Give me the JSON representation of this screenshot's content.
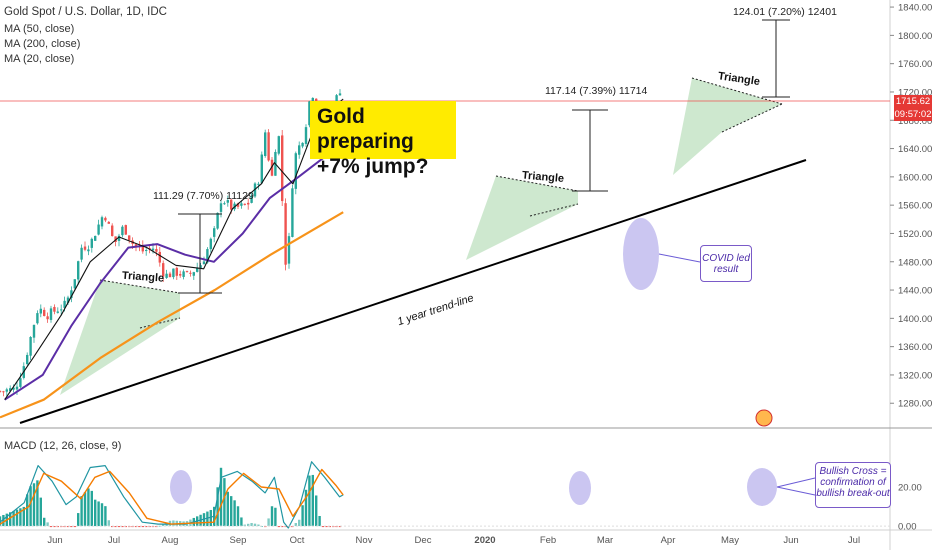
{
  "header": {
    "symbol": "Gold Spot / U.S. Dollar, 1D, IDC",
    "indicators": [
      "MA (50, close)",
      "MA (200, close)",
      "MA (20, close)"
    ],
    "macd_label": "MACD (12, 26, close, 9)"
  },
  "callout": {
    "line1": "Gold preparing",
    "line2": "+7% jump?"
  },
  "price_tags": {
    "last": "1715.62",
    "timer": "09:57:02"
  },
  "annotations": {
    "measure1": "111.29 (7.70%) 11129",
    "measure2": "117.14 (7.39%) 11714",
    "measure3": "124.01 (7.20%) 12401",
    "triangle1": "Triangle",
    "triangle2": "Triangle",
    "triangle3": "Triangle",
    "trendline": "1 year trend-line",
    "covid_note": "COVID led result",
    "bullish_note": "Bullish Cross = confirmation of bullish break-out"
  },
  "colors": {
    "up": "#26a69a",
    "down": "#ef5350",
    "ma20": "#111111",
    "ma50": "#5b2ea6",
    "ma200": "#f7931a",
    "macd": "#2196a3",
    "signal": "#f57c00",
    "highlight": "#6b5cd6"
  },
  "chart_data": {
    "type": "candlestick",
    "title": "Gold Spot / U.S. Dollar, 1D, IDC",
    "x_ticks": [
      "Jun",
      "Jul",
      "Aug",
      "Sep",
      "Oct",
      "Nov",
      "Dec",
      "2020",
      "Feb",
      "Mar",
      "Apr",
      "May",
      "Jun",
      "Jul"
    ],
    "y_ticks": [
      1280,
      1320,
      1360,
      1400,
      1440,
      1480,
      1520,
      1560,
      1600,
      1640,
      1680,
      1720,
      1760,
      1800,
      1840
    ],
    "ylim": [
      1245,
      1850
    ],
    "close_path": [
      [
        "2019-05-15",
        1297
      ],
      [
        "2019-05-31",
        1300
      ],
      [
        "2019-06-10",
        1335
      ],
      [
        "2019-06-20",
        1390
      ],
      [
        "2019-06-25",
        1415
      ],
      [
        "2019-07-05",
        1405
      ],
      [
        "2019-07-15",
        1412
      ],
      [
        "2019-07-25",
        1420
      ],
      [
        "2019-08-05",
        1465
      ],
      [
        "2019-08-10",
        1500
      ],
      [
        "2019-08-20",
        1505
      ],
      [
        "2019-09-04",
        1550
      ],
      [
        "2019-09-15",
        1505
      ],
      [
        "2019-09-25",
        1530
      ],
      [
        "2019-10-05",
        1505
      ],
      [
        "2019-10-15",
        1495
      ],
      [
        "2019-10-28",
        1500
      ],
      [
        "2019-11-08",
        1460
      ],
      [
        "2019-11-20",
        1465
      ],
      [
        "2019-12-03",
        1460
      ],
      [
        "2019-12-18",
        1478
      ],
      [
        "2019-12-31",
        1520
      ],
      [
        "2020-01-08",
        1570
      ],
      [
        "2020-01-20",
        1555
      ],
      [
        "2020-02-05",
        1560
      ],
      [
        "2020-02-18",
        1600
      ],
      [
        "2020-02-24",
        1665
      ],
      [
        "2020-03-02",
        1595
      ],
      [
        "2020-03-09",
        1675
      ],
      [
        "2020-03-17",
        1480
      ],
      [
        "2020-03-20",
        1495
      ],
      [
        "2020-03-26",
        1625
      ],
      [
        "2020-04-06",
        1660
      ],
      [
        "2020-04-14",
        1725
      ],
      [
        "2020-04-21",
        1685
      ],
      [
        "2020-04-30",
        1700
      ],
      [
        "2020-05-06",
        1690
      ],
      [
        "2020-05-14",
        1725
      ],
      [
        "2020-05-18",
        1715
      ]
    ],
    "ma20": [
      [
        "2019-05-20",
        1285
      ],
      [
        "2019-06-20",
        1345
      ],
      [
        "2019-07-20",
        1405
      ],
      [
        "2019-08-20",
        1480
      ],
      [
        "2019-09-20",
        1515
      ],
      [
        "2019-10-20",
        1500
      ],
      [
        "2019-11-20",
        1475
      ],
      [
        "2019-12-20",
        1470
      ],
      [
        "2020-01-20",
        1555
      ],
      [
        "2020-02-20",
        1590
      ],
      [
        "2020-03-05",
        1620
      ],
      [
        "2020-03-25",
        1590
      ],
      [
        "2020-04-20",
        1680
      ],
      [
        "2020-05-18",
        1710
      ]
    ],
    "ma50": [
      [
        "2019-05-20",
        1285
      ],
      [
        "2019-06-30",
        1320
      ],
      [
        "2019-07-31",
        1390
      ],
      [
        "2019-08-31",
        1450
      ],
      [
        "2019-09-30",
        1500
      ],
      [
        "2019-10-31",
        1505
      ],
      [
        "2019-11-30",
        1490
      ],
      [
        "2019-12-31",
        1480
      ],
      [
        "2020-01-31",
        1520
      ],
      [
        "2020-02-29",
        1570
      ],
      [
        "2020-03-31",
        1600
      ],
      [
        "2020-04-30",
        1630
      ],
      [
        "2020-05-18",
        1660
      ]
    ],
    "ma200": [
      [
        "2019-05-15",
        1260
      ],
      [
        "2019-07-01",
        1285
      ],
      [
        "2019-09-01",
        1345
      ],
      [
        "2019-11-01",
        1395
      ],
      [
        "2020-01-01",
        1440
      ],
      [
        "2020-03-01",
        1490
      ],
      [
        "2020-05-18",
        1550
      ]
    ],
    "macd": {
      "ylim": [
        -2,
        40
      ],
      "y_ticks": [
        0,
        20
      ],
      "macd_line": [
        [
          "2019-05-15",
          2
        ],
        [
          "2019-06-10",
          12
        ],
        [
          "2019-06-25",
          31
        ],
        [
          "2019-07-10",
          23
        ],
        [
          "2019-07-25",
          11
        ],
        [
          "2019-08-05",
          15
        ],
        [
          "2019-08-20",
          30
        ],
        [
          "2019-09-05",
          31
        ],
        [
          "2019-09-25",
          15
        ],
        [
          "2019-10-15",
          2
        ],
        [
          "2019-11-01",
          1
        ],
        [
          "2019-12-01",
          1
        ],
        [
          "2019-12-31",
          5
        ],
        [
          "2020-01-08",
          25
        ],
        [
          "2020-01-25",
          28
        ],
        [
          "2020-02-10",
          23
        ],
        [
          "2020-02-24",
          17
        ],
        [
          "2020-03-05",
          25
        ],
        [
          "2020-03-15",
          2
        ],
        [
          "2020-03-20",
          -1
        ],
        [
          "2020-04-01",
          10
        ],
        [
          "2020-04-14",
          33
        ],
        [
          "2020-04-28",
          25
        ],
        [
          "2020-05-14",
          15
        ],
        [
          "2020-05-18",
          16
        ]
      ],
      "signal_line": [
        [
          "2019-05-15",
          1
        ],
        [
          "2019-06-15",
          10
        ],
        [
          "2019-07-01",
          27
        ],
        [
          "2019-07-20",
          23
        ],
        [
          "2019-08-10",
          14
        ],
        [
          "2019-08-25",
          25
        ],
        [
          "2019-09-10",
          28
        ],
        [
          "2019-10-01",
          17
        ],
        [
          "2019-10-20",
          4
        ],
        [
          "2019-11-15",
          1
        ],
        [
          "2019-12-31",
          2
        ],
        [
          "2020-01-15",
          19
        ],
        [
          "2020-02-01",
          27
        ],
        [
          "2020-02-20",
          20
        ],
        [
          "2020-03-10",
          19
        ],
        [
          "2020-03-25",
          5
        ],
        [
          "2020-04-10",
          16
        ],
        [
          "2020-04-25",
          29
        ],
        [
          "2020-05-10",
          21
        ],
        [
          "2020-05-18",
          16
        ]
      ]
    }
  }
}
